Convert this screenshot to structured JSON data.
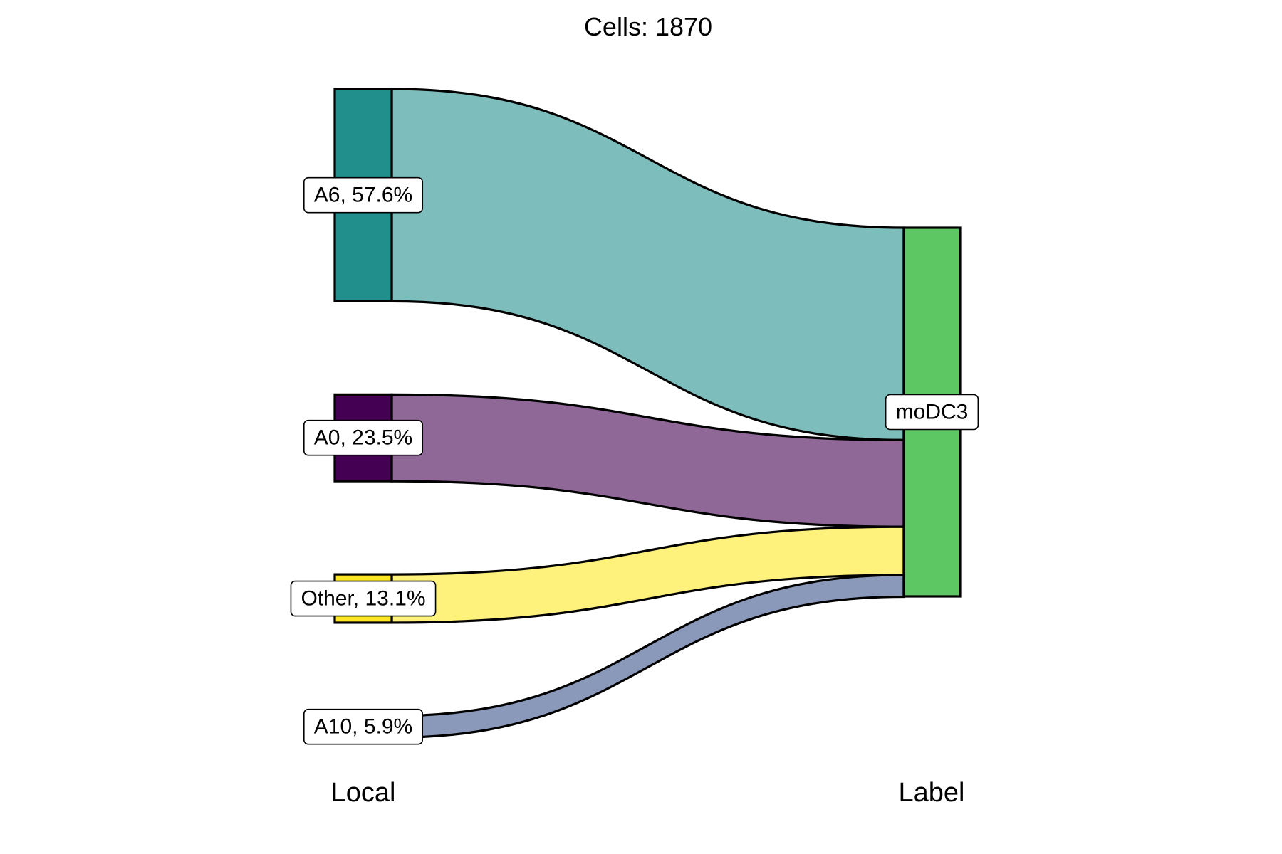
{
  "chart_data": {
    "type": "sankey",
    "title": "Cells:  1870",
    "total_cells": 1870,
    "axes": [
      "Local",
      "Label"
    ],
    "source_nodes": [
      {
        "name": "A6",
        "percent": 57.6,
        "label": "A6, 57.6%",
        "color": "#21908C"
      },
      {
        "name": "A0",
        "percent": 23.5,
        "label": "A0, 23.5%",
        "color": "#440154"
      },
      {
        "name": "Other",
        "percent": 13.1,
        "label": "Other, 13.1%",
        "color": "#FDE725"
      },
      {
        "name": "A10",
        "percent": 5.9,
        "label": "A10, 5.9%",
        "color": "#3B528B"
      }
    ],
    "target_nodes": [
      {
        "name": "moDC3",
        "percent": 100.0,
        "label": "moDC3",
        "color": "#5DC863"
      }
    ],
    "flows": [
      {
        "source": "A6",
        "target": "moDC3",
        "percent": 57.6,
        "color": "#7DBDBC"
      },
      {
        "source": "A0",
        "target": "moDC3",
        "percent": 23.5,
        "color": "#8F6898"
      },
      {
        "source": "Other",
        "target": "moDC3",
        "percent": 13.1,
        "color": "#FEF27D"
      },
      {
        "source": "A10",
        "target": "moDC3",
        "percent": 5.9,
        "color": "#8A98BA"
      }
    ]
  }
}
